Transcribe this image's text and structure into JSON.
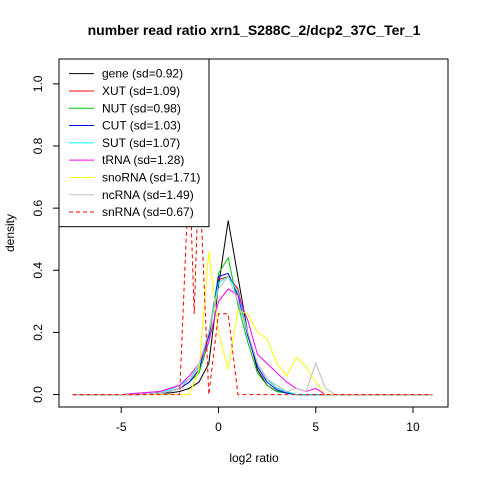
{
  "chart_data": {
    "type": "line",
    "title": "number read ratio xrn1_S288C_2/dcp2_37C_Ter_1",
    "xlabel": "log2 ratio",
    "ylabel": "density",
    "xlim": [
      -8.2,
      11.8
    ],
    "ylim": [
      -0.04,
      1.08
    ],
    "x_ticks": [
      -5,
      0,
      5,
      10
    ],
    "x_tick_labels": [
      "-5",
      "0",
      "5",
      "10"
    ],
    "y_ticks": [
      0.0,
      0.2,
      0.4,
      0.6,
      0.8,
      1.0
    ],
    "y_tick_labels": [
      "0.0",
      "0.2",
      "0.4",
      "0.6",
      "0.8",
      "1.0"
    ],
    "grid": false,
    "legend_position": "top-left",
    "series": [
      {
        "name": "gene (sd=0.92)",
        "color": "#000000",
        "dash": "solid",
        "x": [
          -7.5,
          -5,
          -4,
          -3,
          -2.5,
          -2,
          -1.5,
          -1,
          -0.5,
          0,
          0.5,
          1,
          1.5,
          2,
          2.5,
          3,
          3.5,
          4,
          4.5,
          5,
          5.5,
          6,
          8,
          11
        ],
        "y": [
          0,
          0,
          0,
          0.005,
          0.005,
          0.01,
          0.02,
          0.04,
          0.1,
          0.35,
          0.56,
          0.38,
          0.2,
          0.08,
          0.03,
          0.01,
          0.005,
          0,
          0,
          0,
          0,
          0,
          0,
          0
        ]
      },
      {
        "name": "XUT (sd=1.09)",
        "color": "#ff0000",
        "dash": "solid",
        "x": [
          -7.5,
          -5,
          -4,
          -3,
          -2.5,
          -2,
          -1.5,
          -1,
          -0.5,
          0,
          0.5,
          1,
          1.5,
          2,
          2.5,
          3,
          3.5,
          4,
          4.5,
          5,
          5.5,
          6,
          8,
          11
        ],
        "y": [
          0,
          0,
          0.005,
          0.01,
          0.02,
          0.03,
          0.05,
          0.09,
          0.2,
          0.37,
          0.38,
          0.34,
          0.2,
          0.1,
          0.05,
          0.02,
          0.01,
          0,
          0,
          0,
          0,
          0,
          0,
          0
        ]
      },
      {
        "name": "NUT (sd=0.98)",
        "color": "#00c000",
        "dash": "solid",
        "x": [
          -7.5,
          -5,
          -4,
          -3,
          -2.5,
          -2,
          -1.5,
          -1,
          -0.5,
          0,
          0.5,
          1,
          1.5,
          2,
          2.5,
          3,
          3.5,
          4,
          4.5,
          5,
          5.5,
          6,
          8,
          11
        ],
        "y": [
          0,
          0,
          0,
          0.005,
          0.01,
          0.02,
          0.04,
          0.07,
          0.17,
          0.39,
          0.44,
          0.29,
          0.17,
          0.07,
          0.03,
          0.01,
          0.005,
          0,
          0,
          0,
          0,
          0,
          0,
          0
        ]
      },
      {
        "name": "CUT (sd=1.03)",
        "color": "#0000ff",
        "dash": "solid",
        "x": [
          -7.5,
          -5,
          -4,
          -3,
          -2.5,
          -2,
          -1.5,
          -1,
          -0.5,
          0,
          0.5,
          1,
          1.5,
          2,
          2.5,
          3,
          3.5,
          4,
          4.5,
          5,
          5.5,
          6,
          8,
          11
        ],
        "y": [
          0,
          0,
          0,
          0.005,
          0.01,
          0.02,
          0.04,
          0.08,
          0.19,
          0.38,
          0.39,
          0.32,
          0.19,
          0.09,
          0.04,
          0.015,
          0.005,
          0,
          0,
          0,
          0,
          0,
          0,
          0
        ]
      },
      {
        "name": "SUT (sd=1.07)",
        "color": "#00ffff",
        "dash": "solid",
        "x": [
          -7.5,
          -5,
          -4,
          -3,
          -2.5,
          -2,
          -1.5,
          -1,
          -0.5,
          0,
          0.5,
          1,
          1.5,
          2,
          2.5,
          3,
          3.5,
          4,
          4.5,
          5,
          5.5,
          6,
          8,
          11
        ],
        "y": [
          0,
          0,
          0.005,
          0.01,
          0.015,
          0.03,
          0.05,
          0.09,
          0.2,
          0.36,
          0.38,
          0.33,
          0.2,
          0.1,
          0.05,
          0.02,
          0.01,
          0,
          0,
          0,
          0,
          0,
          0,
          0
        ]
      },
      {
        "name": "tRNA (sd=1.28)",
        "color": "#ff00ff",
        "dash": "solid",
        "x": [
          -7.5,
          -5,
          -4,
          -3,
          -2.5,
          -2,
          -1.5,
          -1,
          -0.5,
          0,
          0.5,
          1,
          1.5,
          2,
          2.5,
          3,
          3.5,
          4,
          4.5,
          5,
          5.5,
          6,
          8,
          11
        ],
        "y": [
          0,
          0,
          0.005,
          0.01,
          0.02,
          0.03,
          0.06,
          0.1,
          0.17,
          0.3,
          0.34,
          0.32,
          0.24,
          0.13,
          0.1,
          0.07,
          0.04,
          0.02,
          0.01,
          0.02,
          0,
          0,
          0,
          0
        ]
      },
      {
        "name": "snoRNA (sd=1.71)",
        "color": "#ffff00",
        "dash": "solid",
        "x": [
          -7.5,
          -5,
          -4,
          -3,
          -2.5,
          -2,
          -1.5,
          -1,
          -0.5,
          0,
          0.5,
          1,
          1.5,
          2,
          2.5,
          3,
          3.5,
          4,
          4.5,
          5,
          5.5,
          6,
          8,
          11
        ],
        "y": [
          0,
          0,
          0,
          0,
          0,
          0,
          0,
          0.08,
          0.46,
          0.2,
          0.08,
          0.27,
          0.26,
          0.2,
          0.18,
          0.1,
          0.06,
          0.12,
          0.09,
          0.04,
          0,
          0,
          0,
          0
        ]
      },
      {
        "name": "ncRNA (sd=1.49)",
        "color": "#bebebe",
        "dash": "solid",
        "x": [
          -7.5,
          -5,
          -4,
          -3,
          -2.5,
          -2,
          -1.5,
          -1,
          -0.5,
          0,
          0.5,
          1,
          1.5,
          2,
          2.5,
          3,
          3.5,
          4,
          4.5,
          5,
          5.5,
          6,
          8,
          11
        ],
        "y": [
          0,
          0,
          0,
          0.005,
          0.01,
          0.02,
          0.05,
          0.1,
          0.2,
          0.34,
          0.38,
          0.3,
          0.2,
          0.1,
          0.05,
          0.03,
          0.01,
          0.02,
          0.01,
          0.1,
          0.02,
          0,
          0,
          0
        ]
      },
      {
        "name": "snRNA (sd=0.67)",
        "color": "#ff0000",
        "dash": "dashed",
        "x": [
          -7.5,
          -2,
          -1.5,
          -1.25,
          -1,
          -0.5,
          0,
          0.5,
          1,
          1.5,
          11
        ],
        "y": [
          0,
          0,
          0.74,
          0.26,
          0.74,
          0,
          0.26,
          0.26,
          0,
          0,
          0
        ]
      }
    ]
  }
}
